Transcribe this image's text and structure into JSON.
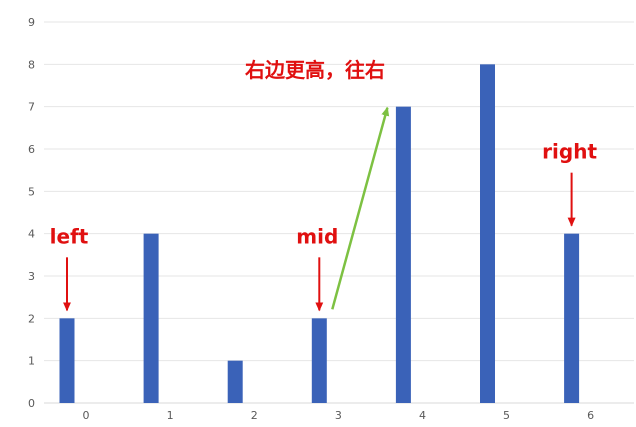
{
  "chart_data": {
    "type": "bar",
    "categories": [
      "0",
      "1",
      "2",
      "3",
      "4",
      "5",
      "6"
    ],
    "values": [
      2,
      4,
      1,
      2,
      7,
      8,
      4
    ],
    "ylim": [
      0,
      9
    ],
    "yticks": [
      "0",
      "1",
      "2",
      "3",
      "4",
      "5",
      "6",
      "7",
      "8",
      "9"
    ],
    "grid": true,
    "bar_color": "#3a62b8",
    "annotations": [
      {
        "text": "left",
        "category": "0",
        "color": "#e01010"
      },
      {
        "text": "mid",
        "category": "3",
        "color": "#e01010"
      },
      {
        "text": "right",
        "category": "6",
        "color": "#e01010"
      },
      {
        "text": "右边更高，往右",
        "color": "#e01010",
        "arrow_color": "#7dc142",
        "arrow_from_category": "3",
        "arrow_to_category": "4"
      }
    ]
  }
}
